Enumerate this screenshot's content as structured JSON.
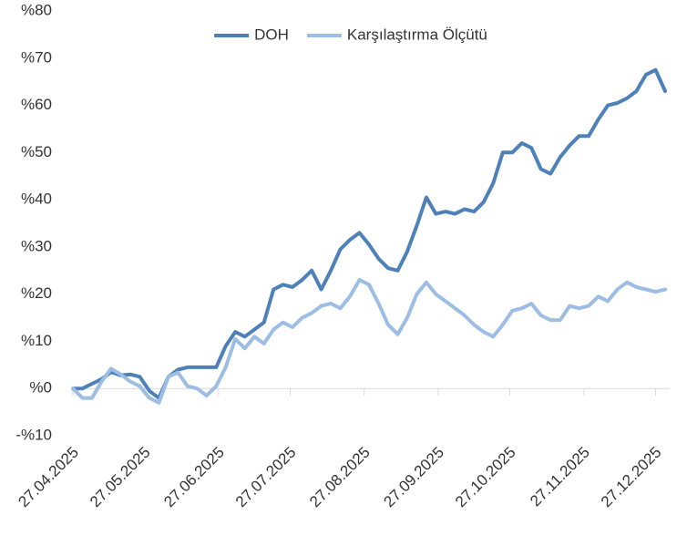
{
  "chart_data": {
    "type": "line",
    "x": [
      "27.04.2025",
      "01.05.2025",
      "05.05.2025",
      "09.05.2025",
      "13.05.2025",
      "17.05.2025",
      "21.05.2025",
      "25.05.2025",
      "29.05.2025",
      "02.06.2025",
      "06.06.2025",
      "10.06.2025",
      "14.06.2025",
      "18.06.2025",
      "22.06.2025",
      "26.06.2025",
      "30.06.2025",
      "04.07.2025",
      "08.07.2025",
      "12.07.2025",
      "16.07.2025",
      "20.07.2025",
      "24.07.2025",
      "28.07.2025",
      "01.08.2025",
      "05.08.2025",
      "09.08.2025",
      "13.08.2025",
      "17.08.2025",
      "21.08.2025",
      "25.08.2025",
      "29.08.2025",
      "02.09.2025",
      "06.09.2025",
      "10.09.2025",
      "14.09.2025",
      "18.09.2025",
      "22.09.2025",
      "26.09.2025",
      "30.09.2025",
      "04.10.2025",
      "08.10.2025",
      "12.10.2025",
      "16.10.2025",
      "20.10.2025",
      "24.10.2025",
      "28.10.2025",
      "01.11.2025",
      "05.11.2025",
      "09.11.2025",
      "13.11.2025",
      "17.11.2025",
      "21.11.2025",
      "25.11.2025",
      "29.11.2025",
      "03.12.2025",
      "07.12.2025",
      "11.12.2025",
      "15.12.2025",
      "19.12.2025",
      "23.12.2025",
      "27.12.2025",
      "31.12.2025"
    ],
    "series": [
      {
        "name": "DOH",
        "color": "#4e80b9",
        "values": [
          0,
          0,
          1,
          2,
          3.5,
          2.8,
          3,
          2.5,
          -0.5,
          -2,
          2.5,
          4,
          4.5,
          4.5,
          4.5,
          4.5,
          9,
          12,
          11,
          12.5,
          14,
          21,
          22,
          21.5,
          23,
          25,
          21,
          25,
          29.5,
          31.5,
          33,
          30.5,
          27.5,
          25.5,
          25,
          29,
          34.5,
          40.5,
          37,
          37.5,
          37,
          38,
          37.5,
          39.5,
          43.5,
          50,
          50,
          52,
          51,
          46.5,
          45.5,
          49,
          51.5,
          53.5,
          53.5,
          57,
          60,
          60.5,
          61.5,
          63,
          66.5,
          67.5,
          63
        ]
      },
      {
        "name": "Karşılaştırma Ölçütü",
        "color": "#9dbde4",
        "values": [
          0,
          -2,
          -2,
          1.5,
          4.2,
          3,
          1.5,
          0.5,
          -2,
          -3,
          2.5,
          3.4,
          0.5,
          0,
          -1.5,
          0.5,
          4.5,
          10.5,
          8.5,
          11,
          9.5,
          12.5,
          14,
          13,
          15,
          16,
          17.5,
          18,
          17,
          19.5,
          23,
          22,
          18,
          13.5,
          11.5,
          15,
          20,
          22.5,
          20,
          18.5,
          17,
          15.5,
          13.5,
          12,
          11,
          13.5,
          16.5,
          17,
          18,
          15.5,
          14.5,
          14.5,
          17.5,
          17,
          17.5,
          19.5,
          18.5,
          21,
          22.5,
          21.5,
          21,
          20.5,
          21
        ]
      }
    ],
    "xlim": [
      "27.04.2025",
      "31.12.2025"
    ],
    "xticks": [
      "27.04.2025",
      "27.05.2025",
      "27.06.2025",
      "27.07.2025",
      "27.08.2025",
      "27.09.2025",
      "27.10.2025",
      "27.11.2025",
      "27.12.2025"
    ],
    "ylim": [
      -10,
      80
    ],
    "yticks": [
      {
        "value": -10,
        "label": "-%10"
      },
      {
        "value": 0,
        "label": "%0"
      },
      {
        "value": 10,
        "label": "%10"
      },
      {
        "value": 20,
        "label": "%20"
      },
      {
        "value": 30,
        "label": "%30"
      },
      {
        "value": 40,
        "label": "%40"
      },
      {
        "value": 50,
        "label": "%50"
      },
      {
        "value": 60,
        "label": "%60"
      },
      {
        "value": 70,
        "label": "%70"
      },
      {
        "value": 80,
        "label": "%80"
      }
    ],
    "grid": false,
    "legend": "top"
  }
}
